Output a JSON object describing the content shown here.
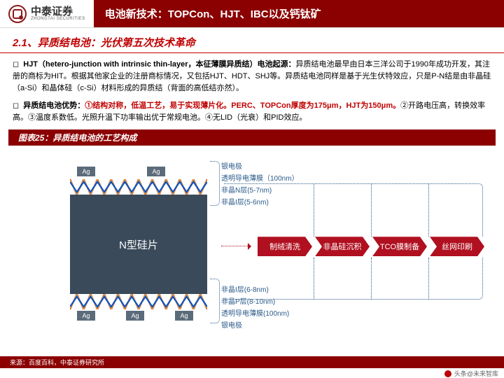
{
  "header": {
    "company_cn": "中泰证券",
    "company_en": "ZHONGTAI SECURITIES",
    "title": "电池新技术：TOPCon、HJT、IBC以及钙钛矿"
  },
  "section": {
    "number": "2.1、",
    "title": "异质结电池：光伏第五次技术革命"
  },
  "para1": {
    "lead": "HJT（hetero-junction with intrinsic thin-layer，本征薄膜异质结）电池起源：",
    "body": "异质结电池最早由日本三洋公司于1990年成功开发，其注册的商标为HIT。根据其他家企业的注册商标情况，又包括HJT、HDT、SHJ等。异质结电池同样是基于光生伏特效应，只是P-N结是由非晶硅（a-Si）和晶体硅（c-Si）材料形成的异质结（背面的高低结亦然）。"
  },
  "para2": {
    "lead": "异质结电池优势：",
    "pt1": "①结构对称，低温工艺，易于实现薄片化。PERC、TOPCon厚度为175μm，HJT为150μm。",
    "pt2": "②开路电压高，转换效率高。③温度系数低。光照升温下功率输出优于常规电池。④无LID（光衰）和PID效应。"
  },
  "figure": {
    "title": "图表25：异质结电池的工艺构成",
    "ag": "Ag",
    "core": "N型硅片",
    "layers_top": [
      "银电极",
      "透明导电薄膜（100nm）",
      "非晶N层(5-7nm)",
      "非晶I层(5-6nm)"
    ],
    "layers_bot": [
      "非晶I层(6-8nm)",
      "非晶P层(8-10nm)",
      "透明导电薄膜(100nm)",
      "银电极"
    ],
    "process": [
      "制绒清洗",
      "非晶硅沉积",
      "TCO膜制备",
      "丝网印刷"
    ],
    "zigzag_colors": [
      "#c82020",
      "#e08030",
      "#f0c830",
      "#1050c0"
    ],
    "core_color": "#3a4a5a",
    "ag_color": "#5b6b7a",
    "chevron_color": "#b01020"
  },
  "source": "来源：百度百科，中泰证券研究所",
  "footer": "头条@未来智库"
}
